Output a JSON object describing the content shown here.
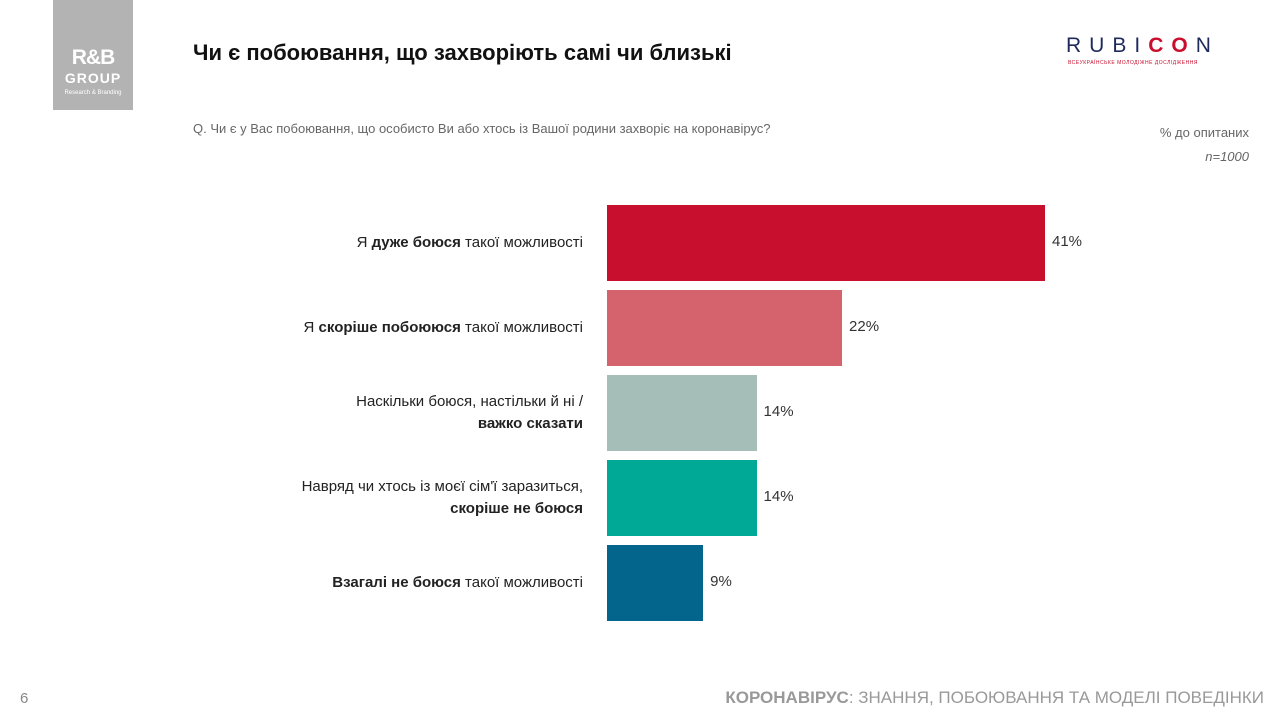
{
  "logo": {
    "line1": "R&B",
    "line2": "GROUP",
    "line3": "Research & Branding"
  },
  "title": "Чи є побоювання, що захворіють самі чи близькі",
  "brand": {
    "pre": "RUBI",
    "accent": "CO",
    "post": "N",
    "subtitle": "ВСЕУКРАЇНСЬКЕ МОЛОДІЖНЕ ДОСЛІДЖЕННЯ",
    "accent_color": "#c8102e",
    "main_color": "#1f2a5c"
  },
  "question": "Q. Чи є у Вас побоювання, що особисто Ви або хтось із Вашої родини захворіє на коронавірус?",
  "base": {
    "line1": "% до опитаних",
    "line2": "n=1000"
  },
  "chart_data": {
    "type": "bar",
    "orientation": "horizontal",
    "categories": [
      "Я дуже боюся такої можливості",
      "Я скоріше побоююся такої можливості",
      "Наскільки боюся, настільки й ні / важко сказати",
      "Навряд чи хтось із моєї сім'ї заразиться, скоріше не боюся",
      "Взагалі не боюся такої можливості"
    ],
    "category_parts": [
      [
        {
          "t": "Я ",
          "b": false
        },
        {
          "t": "дуже боюся",
          "b": true
        },
        {
          "t": " такої можливості",
          "b": false
        }
      ],
      [
        {
          "t": "Я ",
          "b": false
        },
        {
          "t": "скоріше побоююся",
          "b": true
        },
        {
          "t": " такої можливості",
          "b": false
        }
      ],
      [
        {
          "t": "Наскільки боюся, настільки й ні /",
          "b": false
        },
        {
          "br": true
        },
        {
          "t": "важко сказати",
          "b": true
        }
      ],
      [
        {
          "t": "Навряд чи хтось із моєї сім'ї заразиться,",
          "b": false
        },
        {
          "br": true
        },
        {
          "t": "скоріше не боюся",
          "b": true
        }
      ],
      [
        {
          "t": "Взагалі не боюся",
          "b": true
        },
        {
          "t": " такої можливості",
          "b": false
        }
      ]
    ],
    "values": [
      41,
      22,
      14,
      14,
      9
    ],
    "value_labels": [
      "41%",
      "22%",
      "14%",
      "14%",
      "9%"
    ],
    "colors": [
      "#c8102e",
      "#d4636e",
      "#a5beb8",
      "#00a896",
      "#03658c"
    ],
    "unit": "%"
  },
  "page_number": "6",
  "footer": {
    "bold": "КОРОНАВІРУС",
    "rest": ": ЗНАННЯ, ПОБОЮВАННЯ ТА МОДЕЛІ ПОВЕДІНКИ"
  }
}
